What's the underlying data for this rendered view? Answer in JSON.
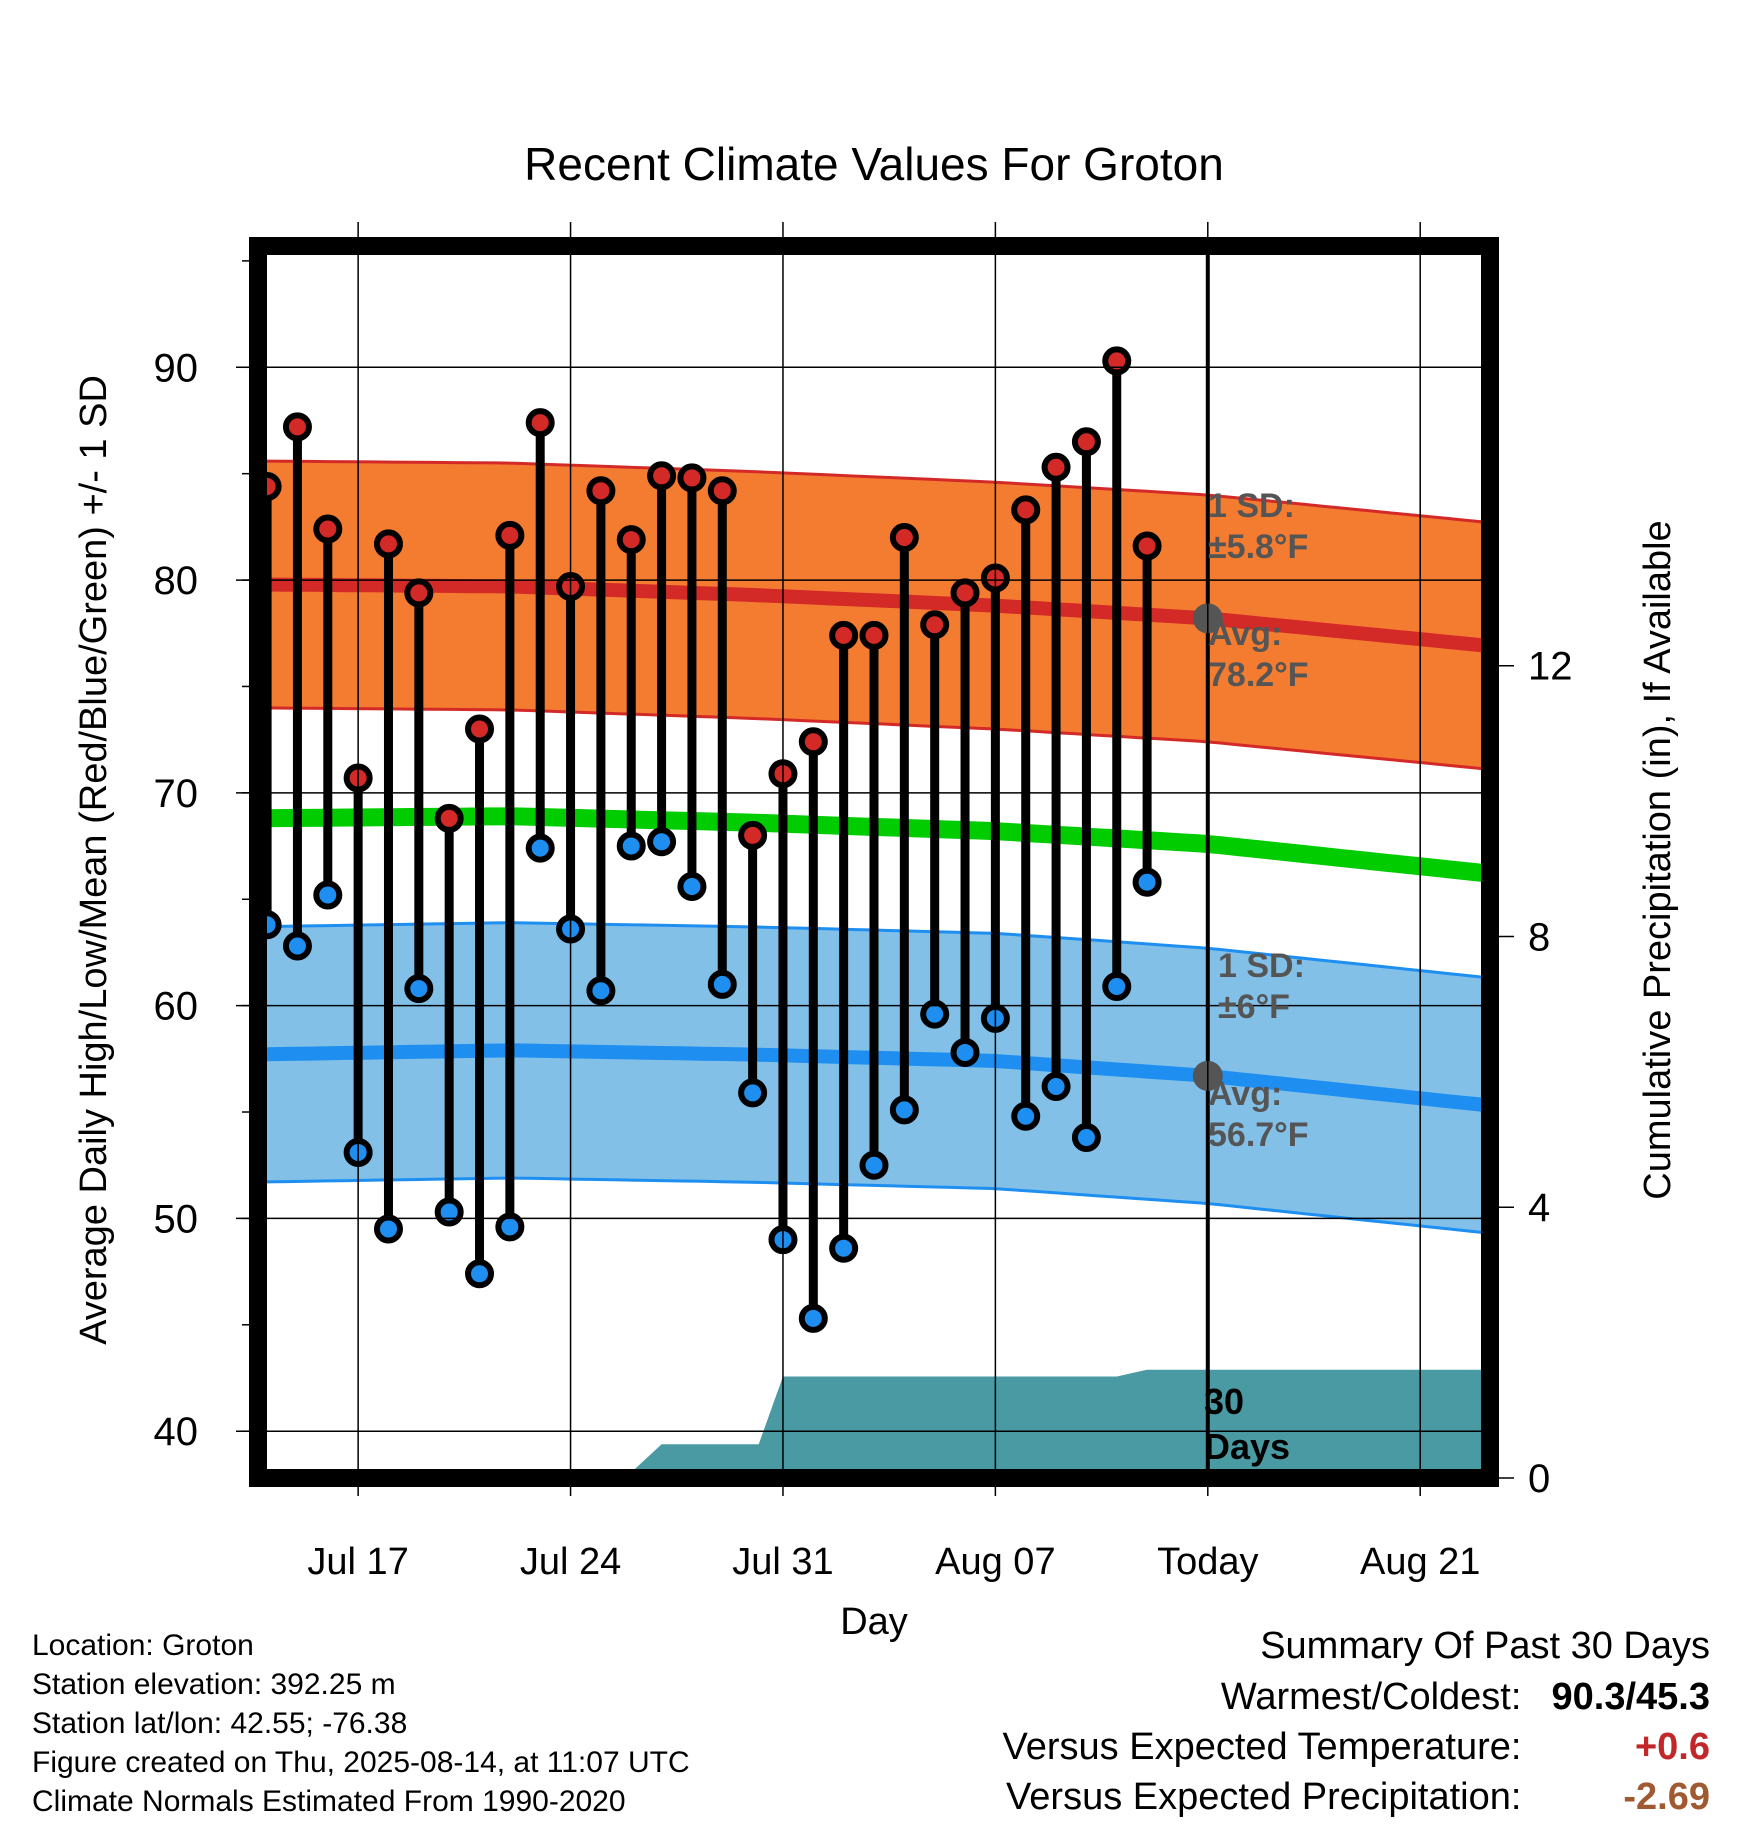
{
  "chart_data": {
    "type": "line",
    "title": "Recent Climate Values For Groton",
    "xlabel": "Day",
    "ylabel_left": "Average Daily High/Low/Mean (Red/Blue/Green) +/- 1 SD",
    "ylabel_right": "Cumulative Precipitation (in), If Available",
    "ylim_left": [
      37.8,
      95.7
    ],
    "ylim_right": [
      0,
      18.2
    ],
    "x_ticks": [
      {
        "day": 3,
        "label": "Jul 17"
      },
      {
        "day": 10,
        "label": "Jul 24"
      },
      {
        "day": 17,
        "label": "Jul 31"
      },
      {
        "day": 24,
        "label": "Aug 07"
      },
      {
        "day": 31,
        "label": "Today"
      },
      {
        "day": 38,
        "label": "Aug 21"
      }
    ],
    "x_range": [
      -0.3,
      40.3
    ],
    "y_ticks_left": [
      40,
      50,
      60,
      70,
      80,
      90
    ],
    "y_ticks_right": [
      0,
      4,
      8,
      12
    ],
    "daily_high": [
      84.4,
      87.2,
      82.4,
      70.7,
      81.7,
      79.4,
      68.8,
      73.0,
      82.1,
      87.4,
      79.7,
      84.2,
      81.9,
      84.9,
      84.8,
      84.2,
      68.0,
      70.9,
      72.4,
      77.4,
      77.4,
      82.0,
      77.9,
      79.4,
      80.1,
      83.3,
      85.3,
      86.5,
      90.3,
      81.6
    ],
    "daily_low": [
      63.8,
      62.8,
      65.2,
      53.1,
      49.5,
      60.8,
      50.3,
      47.4,
      49.6,
      67.4,
      63.6,
      60.7,
      67.5,
      67.7,
      65.6,
      61.0,
      55.9,
      49.0,
      45.3,
      48.6,
      52.5,
      55.1,
      59.6,
      57.8,
      59.4,
      54.8,
      56.2,
      53.8,
      60.9,
      65.8
    ],
    "normal_high": {
      "days": [
        -0.7,
        8,
        16,
        24,
        31,
        40.3
      ],
      "values": [
        79.8,
        79.7,
        79.3,
        78.8,
        78.2,
        76.9
      ]
    },
    "normal_high_sd": 5.8,
    "normal_mean": {
      "days": [
        -0.7,
        8,
        16,
        24,
        31,
        40.3
      ],
      "values": [
        68.8,
        68.9,
        68.6,
        68.2,
        67.6,
        66.2
      ]
    },
    "normal_low": {
      "days": [
        -0.7,
        8,
        16,
        24,
        31,
        40.3
      ],
      "values": [
        57.7,
        57.9,
        57.7,
        57.4,
        56.7,
        55.3
      ]
    },
    "normal_low_sd": 6.0,
    "cumulative_precip": {
      "days": [
        -0.7,
        11.8,
        13,
        16.2,
        17,
        28,
        29,
        40.3
      ],
      "values": [
        0,
        0,
        0.5,
        0.5,
        1.5,
        1.5,
        1.6,
        1.6
      ]
    },
    "today_day": 31,
    "annotations": {
      "high_sd_title": "1 SD:",
      "high_sd_value": "±5.8°F",
      "high_avg_title": "Avg:",
      "high_avg_value": "78.2°F",
      "low_sd_title": "1 SD:",
      "low_sd_value": "±6°F",
      "low_avg_title": "Avg:",
      "low_avg_value": "56.7°F",
      "days_line1": "30",
      "days_line2": "Days"
    },
    "colors": {
      "high_band": "#f47c30",
      "high_line": "#d32a28",
      "high_marker": "#d32a28",
      "mean_line": "#00cc00",
      "low_band": "#82c0e8",
      "low_line": "#1e8ff0",
      "low_marker": "#1e8ff0",
      "precip": "#4a9aa3",
      "annotation_text": "#555555",
      "today_dot": "#555555"
    }
  },
  "info": {
    "location": "Location: Groton",
    "elevation": "Station elevation: 392.25 m",
    "latlon": "Station lat/lon: 42.55; -76.38",
    "created": "Figure created on Thu, 2025-08-14, at 11:07 UTC",
    "normals": "Climate Normals Estimated From 1990-2020"
  },
  "summary": {
    "title": "Summary Of Past 30 Days",
    "warm_cold_label": "Warmest/Coldest:",
    "warm_cold_value": "90.3/45.3",
    "temp_label": "Versus Expected Temperature:",
    "temp_value": "+0.6",
    "temp_color": "#c0282a",
    "precip_label": "Versus Expected Precipitation:",
    "precip_value": "-2.69",
    "precip_color": "#a05a32"
  }
}
